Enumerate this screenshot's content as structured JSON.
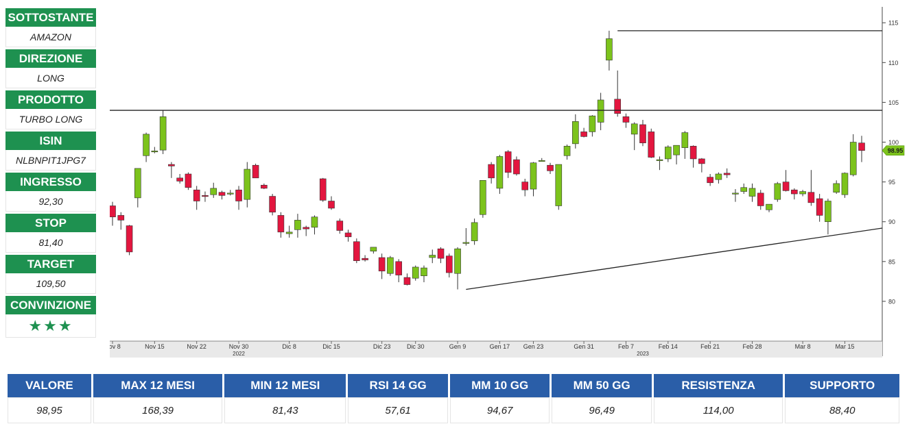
{
  "sidebar": {
    "items": [
      {
        "label": "SOTTOSTANTE",
        "value": "AMAZON"
      },
      {
        "label": "DIREZIONE",
        "value": "LONG"
      },
      {
        "label": "PRODOTTO",
        "value": "TURBO LONG"
      },
      {
        "label": "ISIN",
        "value": "NLBNPIT1JPG7"
      },
      {
        "label": "INGRESSO",
        "value": "92,30"
      },
      {
        "label": "STOP",
        "value": "81,40"
      },
      {
        "label": "TARGET",
        "value": "109,50"
      },
      {
        "label": "CONVINZIONE",
        "value": "★★★"
      }
    ]
  },
  "metrics": {
    "headers": [
      "VALORE",
      "MAX 12 MESI",
      "MIN 12 MESI",
      "RSI 14 GG",
      "MM 10 GG",
      "MM 50 GG",
      "RESISTENZA",
      "SUPPORTO"
    ],
    "values": [
      "98,95",
      "168,39",
      "81,43",
      "57,61",
      "94,67",
      "96,49",
      "114,00",
      "88,40"
    ]
  },
  "colors": {
    "up": "#7cc31c",
    "down": "#e3163f",
    "label_green": "#1e9150",
    "header_blue": "#2a5ea8"
  },
  "chart_data": {
    "type": "candlestick",
    "ylim": [
      75,
      117
    ],
    "yticks": [
      80,
      85,
      90,
      95,
      100,
      105,
      110,
      115
    ],
    "last_price_label": "98.95",
    "last_price": 98.95,
    "x_tick_labels": [
      {
        "label": "Nov 8",
        "index": 0
      },
      {
        "label": "Nov 15",
        "index": 5
      },
      {
        "label": "Nov 22",
        "index": 10
      },
      {
        "label": "Nov 30",
        "index": 15
      },
      {
        "label": "Dic 8",
        "index": 21
      },
      {
        "label": "Dic 15",
        "index": 26
      },
      {
        "label": "Dic 23",
        "index": 32
      },
      {
        "label": "Dic 30",
        "index": 36
      },
      {
        "label": "Gen 9",
        "index": 41
      },
      {
        "label": "Gen 17",
        "index": 46
      },
      {
        "label": "Gen 23",
        "index": 50
      },
      {
        "label": "Gen 31",
        "index": 56
      },
      {
        "label": "Feb 7",
        "index": 61
      },
      {
        "label": "Feb 14",
        "index": 66
      },
      {
        "label": "Feb 21",
        "index": 71
      },
      {
        "label": "Feb 28",
        "index": 76
      },
      {
        "label": "Mar 8",
        "index": 82
      },
      {
        "label": "Mar 15",
        "index": 87
      }
    ],
    "year_labels": [
      {
        "label": "2022",
        "index": 15
      },
      {
        "label": "2023",
        "index": 63
      }
    ],
    "ohlc": [
      [
        92,
        92.5,
        89.5,
        90.6
      ],
      [
        90.8,
        91.2,
        89,
        90.2
      ],
      [
        89.5,
        89.6,
        85.8,
        86.2
      ],
      [
        93,
        96.6,
        91.8,
        96.7
      ],
      [
        98.3,
        101.2,
        97.5,
        101
      ],
      [
        98.8,
        99.4,
        98.6,
        98.9
      ],
      [
        99,
        104,
        98.5,
        103.2
      ],
      [
        97.2,
        97.5,
        95.5,
        97
      ],
      [
        95.5,
        96,
        94.8,
        95.1
      ],
      [
        96,
        96.2,
        94,
        94.3
      ],
      [
        94,
        94.5,
        91.5,
        92.6
      ],
      [
        93.3,
        93.8,
        92.5,
        93.2
      ],
      [
        93.4,
        94.9,
        93,
        94.2
      ],
      [
        93.7,
        93.9,
        92.8,
        93.3
      ],
      [
        93.6,
        94,
        93.3,
        93.6
      ],
      [
        94,
        94.5,
        91.5,
        92.6
      ],
      [
        92.8,
        97.5,
        91.8,
        96.6
      ],
      [
        97.1,
        97.3,
        95.5,
        95.5
      ],
      [
        94.6,
        94.8,
        94.1,
        94.2
      ],
      [
        93.2,
        93.5,
        90.8,
        91.2
      ],
      [
        90.8,
        91.2,
        88,
        88.7
      ],
      [
        88.5,
        89.5,
        88,
        88.7
      ],
      [
        89,
        91,
        88,
        90.2
      ],
      [
        89.3,
        89.5,
        88.2,
        89.1
      ],
      [
        89.3,
        90.8,
        88.4,
        90.6
      ],
      [
        95.4,
        95.5,
        92.5,
        92.7
      ],
      [
        92.6,
        93.2,
        91.5,
        91.7
      ],
      [
        90.1,
        90.4,
        88.5,
        88.9
      ],
      [
        88.6,
        89,
        87.5,
        88.1
      ],
      [
        87.5,
        87.9,
        84.8,
        85.1
      ],
      [
        85.4,
        85.8,
        85,
        85.2
      ],
      [
        86.3,
        86.8,
        86,
        86.8
      ],
      [
        85.5,
        86,
        82.8,
        83.8
      ],
      [
        83.5,
        85.7,
        83.2,
        85.5
      ],
      [
        85,
        85.3,
        82.4,
        83.3
      ],
      [
        83,
        83.5,
        82,
        82.1
      ],
      [
        82.9,
        84.5,
        82.6,
        84.3
      ],
      [
        83.2,
        84.5,
        82.4,
        84.2
      ],
      [
        85.5,
        86.5,
        84.8,
        85.8
      ],
      [
        86.6,
        86.8,
        84.8,
        85.4
      ],
      [
        85.7,
        86,
        83,
        83.6
      ],
      [
        83.5,
        86.8,
        81.5,
        86.6
      ],
      [
        87.4,
        89.2,
        87,
        87.4
      ],
      [
        87.6,
        90.4,
        87.1,
        89.9
      ],
      [
        90.9,
        95.2,
        90.5,
        95.2
      ],
      [
        97.2,
        97.5,
        94.8,
        95.5
      ],
      [
        94.2,
        98.4,
        93.5,
        98.2
      ],
      [
        98.8,
        99,
        95.5,
        96.2
      ],
      [
        97.8,
        98.2,
        95.8,
        96
      ],
      [
        95,
        95.4,
        93.2,
        94
      ],
      [
        94.1,
        97.5,
        93.2,
        97.4
      ],
      [
        97.7,
        98,
        97.6,
        97.7
      ],
      [
        97.1,
        97.4,
        96,
        96.4
      ],
      [
        92,
        97.2,
        91.5,
        97.2
      ],
      [
        98.3,
        99.7,
        97.8,
        99.5
      ],
      [
        99.8,
        103.5,
        99.2,
        102.6
      ],
      [
        101.3,
        101.8,
        100.6,
        100.7
      ],
      [
        101.3,
        103.4,
        100.7,
        103.3
      ],
      [
        102.5,
        106.2,
        101.5,
        105.3
      ],
      [
        110.3,
        114,
        109,
        113
      ],
      [
        105.4,
        109,
        103.2,
        103.6
      ],
      [
        103.2,
        103.6,
        101.8,
        102.5
      ],
      [
        101,
        102.5,
        99,
        102.3
      ],
      [
        102.2,
        102.8,
        99.5,
        99.9
      ],
      [
        101.3,
        101.7,
        98,
        98.1
      ],
      [
        97.8,
        98.2,
        96.5,
        97.8
      ],
      [
        97.9,
        99.6,
        97.5,
        99.4
      ],
      [
        98.4,
        99.6,
        97.2,
        99.6
      ],
      [
        99.3,
        101.4,
        97.9,
        101.2
      ],
      [
        99.5,
        99.6,
        96.8,
        97.9
      ],
      [
        97.9,
        98,
        96.2,
        97.3
      ],
      [
        95.6,
        96,
        94.5,
        94.9
      ],
      [
        95.3,
        96.2,
        94.8,
        96
      ],
      [
        96.1,
        96.7,
        95.5,
        95.9
      ],
      [
        93.6,
        94.1,
        92.5,
        93.6
      ],
      [
        93.8,
        94.8,
        93.5,
        94.3
      ],
      [
        93.2,
        94.8,
        92.5,
        94.2
      ],
      [
        93.6,
        94,
        91.5,
        92
      ],
      [
        91.5,
        92.2,
        91.2,
        92.2
      ],
      [
        92.8,
        95,
        92.5,
        94.8
      ],
      [
        95,
        96.5,
        93.8,
        93.9
      ],
      [
        94,
        94.2,
        92.8,
        93.5
      ],
      [
        93.5,
        94,
        93.2,
        93.8
      ],
      [
        93.7,
        96.5,
        92,
        92.4
      ],
      [
        92.9,
        93.5,
        90,
        90.8
      ],
      [
        90,
        92.9,
        88.4,
        92.6
      ],
      [
        93.7,
        95.2,
        93.5,
        94.8
      ],
      [
        93.4,
        96.2,
        93,
        96.1
      ],
      [
        95.9,
        101,
        95.7,
        100
      ],
      [
        99.9,
        100.8,
        97.5,
        98.95
      ]
    ],
    "lines": [
      {
        "name": "resistance_114",
        "from": {
          "index": 60,
          "value": 114.0
        },
        "to": {
          "index": "end",
          "value": 114.0
        }
      },
      {
        "name": "horizontal_104",
        "from": {
          "index": "start",
          "value": 104.0
        },
        "to": {
          "index": "end",
          "value": 104.0
        }
      },
      {
        "name": "support_trendline",
        "from": {
          "index": 42,
          "value": 81.5
        },
        "to": {
          "index": "end",
          "value": 89.2
        }
      }
    ]
  }
}
